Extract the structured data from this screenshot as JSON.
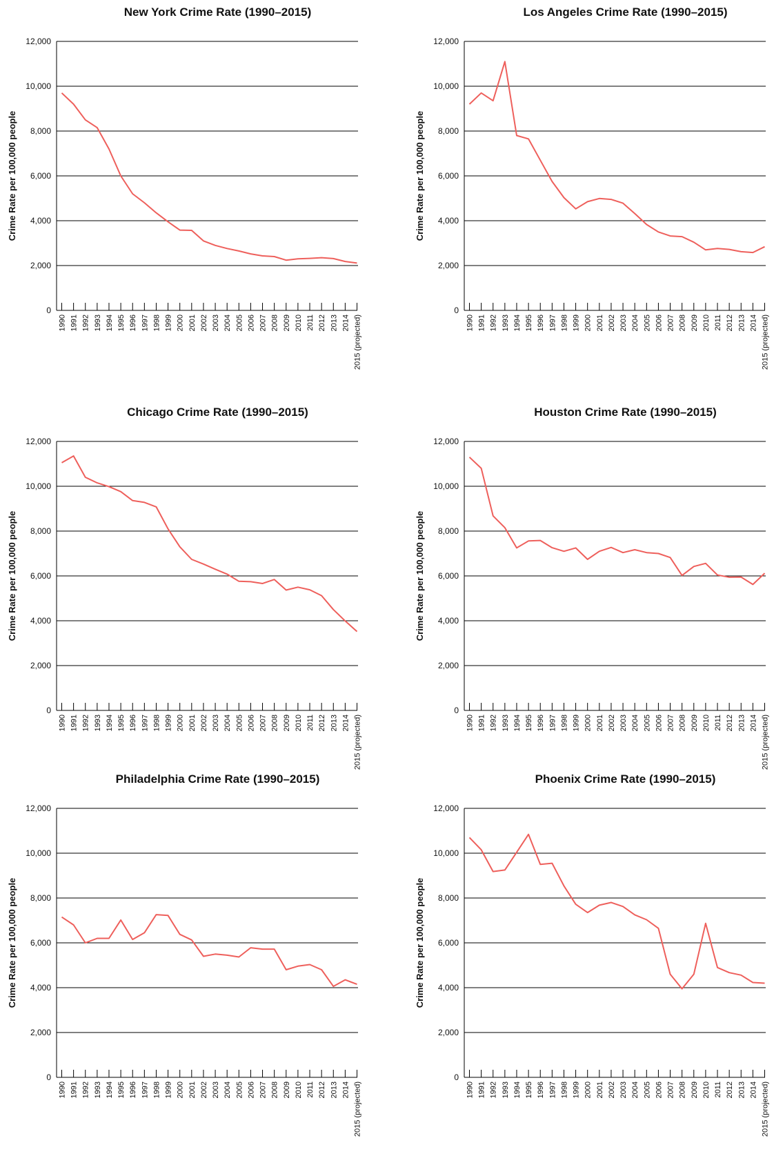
{
  "chart_data": [
    {
      "type": "line",
      "title": "New York Crime Rate (1990–2015)",
      "ylabel": "Crime Rate per 100,000 people",
      "ylim": [
        0,
        12000
      ],
      "yticks": [
        "0",
        "2,000",
        "4,000",
        "6,000",
        "8,000",
        "10,000",
        "12,000"
      ],
      "grid": true,
      "categories": [
        "1990",
        "1991",
        "1992",
        "1993",
        "1994",
        "1995",
        "1996",
        "1997",
        "1998",
        "1999",
        "2000",
        "2001",
        "2002",
        "2003",
        "2004",
        "2005",
        "2006",
        "2007",
        "2008",
        "2009",
        "2010",
        "2011",
        "2012",
        "2013",
        "2014",
        "2015 (projected)"
      ],
      "values": [
        9700,
        9200,
        8500,
        8150,
        7200,
        6000,
        5200,
        4800,
        4350,
        3950,
        3580,
        3570,
        3100,
        2900,
        2760,
        2650,
        2520,
        2430,
        2400,
        2240,
        2300,
        2320,
        2350,
        2310,
        2180,
        2110
      ]
    },
    {
      "type": "line",
      "title": "Los Angeles Crime Rate (1990–2015)",
      "ylabel": "Crime Rate per 100,000 people",
      "ylim": [
        0,
        12000
      ],
      "yticks": [
        "0",
        "2,000",
        "4,000",
        "6,000",
        "8,000",
        "10,000",
        "12,000"
      ],
      "grid": true,
      "categories": [
        "1990",
        "1991",
        "1992",
        "1993",
        "1994",
        "1995",
        "1996",
        "1997",
        "1998",
        "1999",
        "2000",
        "2001",
        "2002",
        "2003",
        "2004",
        "2005",
        "2006",
        "2007",
        "2008",
        "2009",
        "2010",
        "2011",
        "2012",
        "2013",
        "2014",
        "2015 (projected)"
      ],
      "values": [
        9200,
        9700,
        9350,
        11100,
        7800,
        7650,
        6700,
        5750,
        5030,
        4530,
        4850,
        4990,
        4950,
        4780,
        4320,
        3830,
        3500,
        3320,
        3290,
        3040,
        2700,
        2760,
        2720,
        2620,
        2580,
        2840
      ]
    },
    {
      "type": "line",
      "title": "Chicago Crime Rate (1990–2015)",
      "ylabel": "Crime Rate per 100,000 people",
      "ylim": [
        0,
        12000
      ],
      "yticks": [
        "0",
        "2,000",
        "4,000",
        "6,000",
        "8,000",
        "10,000",
        "12,000"
      ],
      "grid": true,
      "categories": [
        "1990",
        "1991",
        "1992",
        "1993",
        "1994",
        "1995",
        "1996",
        "1997",
        "1998",
        "1999",
        "2000",
        "2001",
        "2002",
        "2003",
        "2004",
        "2005",
        "2006",
        "2007",
        "2008",
        "2009",
        "2010",
        "2011",
        "2012",
        "2013",
        "2014",
        "2015 (projected)"
      ],
      "values": [
        11050,
        11350,
        10400,
        10150,
        9980,
        9760,
        9360,
        9280,
        9080,
        8100,
        7300,
        6740,
        6530,
        6300,
        6080,
        5760,
        5740,
        5660,
        5840,
        5370,
        5500,
        5380,
        5120,
        4500,
        3990,
        3520
      ]
    },
    {
      "type": "line",
      "title": "Houston Crime Rate (1990–2015)",
      "ylabel": "Crime Rate per 100,000 people",
      "ylim": [
        0,
        12000
      ],
      "yticks": [
        "0",
        "2,000",
        "4,000",
        "6,000",
        "8,000",
        "10,000",
        "12,000"
      ],
      "grid": true,
      "categories": [
        "1990",
        "1991",
        "1992",
        "1993",
        "1994",
        "1995",
        "1996",
        "1997",
        "1998",
        "1999",
        "2000",
        "2001",
        "2002",
        "2003",
        "2004",
        "2005",
        "2006",
        "2007",
        "2008",
        "2009",
        "2010",
        "2011",
        "2012",
        "2013",
        "2014",
        "2015 (projected)"
      ],
      "values": [
        11300,
        10800,
        8680,
        8150,
        7250,
        7560,
        7580,
        7260,
        7100,
        7250,
        6740,
        7100,
        7270,
        7040,
        7170,
        7040,
        7000,
        6820,
        6020,
        6420,
        6560,
        6040,
        5940,
        5950,
        5620,
        6120
      ]
    },
    {
      "type": "line",
      "title": "Philadelphia Crime Rate (1990–2015)",
      "ylabel": "Crime Rate per 100,000 people",
      "ylim": [
        0,
        12000
      ],
      "yticks": [
        "0",
        "2,000",
        "4,000",
        "6,000",
        "8,000",
        "10,000",
        "12,000"
      ],
      "grid": true,
      "categories": [
        "1990",
        "1991",
        "1992",
        "1993",
        "1994",
        "1995",
        "1996",
        "1997",
        "1998",
        "1999",
        "2000",
        "2001",
        "2002",
        "2003",
        "2004",
        "2005",
        "2006",
        "2007",
        "2008",
        "2009",
        "2010",
        "2011",
        "2012",
        "2013",
        "2014",
        "2015 (projected)"
      ],
      "values": [
        7150,
        6800,
        6000,
        6200,
        6200,
        7020,
        6150,
        6450,
        7260,
        7220,
        6380,
        6130,
        5400,
        5500,
        5450,
        5370,
        5780,
        5720,
        5720,
        4800,
        4960,
        5030,
        4800,
        4060,
        4350,
        4150
      ]
    },
    {
      "type": "line",
      "title": "Phoenix Crime Rate (1990–2015)",
      "ylabel": "Crime Rate per 100,000 people",
      "ylim": [
        0,
        12000
      ],
      "yticks": [
        "0",
        "2,000",
        "4,000",
        "6,000",
        "8,000",
        "10,000",
        "12,000"
      ],
      "grid": true,
      "categories": [
        "1990",
        "1991",
        "1992",
        "1993",
        "1994",
        "1995",
        "1996",
        "1997",
        "1998",
        "1999",
        "2000",
        "2001",
        "2002",
        "2003",
        "2004",
        "2005",
        "2006",
        "2007",
        "2008",
        "2009",
        "2010",
        "2011",
        "2012",
        "2013",
        "2014",
        "2015 (projected)"
      ],
      "values": [
        10700,
        10150,
        9180,
        9250,
        10040,
        10840,
        9500,
        9550,
        8540,
        7720,
        7350,
        7680,
        7800,
        7620,
        7250,
        7030,
        6650,
        4600,
        3950,
        4600,
        6870,
        4900,
        4670,
        4560,
        4230,
        4200
      ]
    }
  ]
}
